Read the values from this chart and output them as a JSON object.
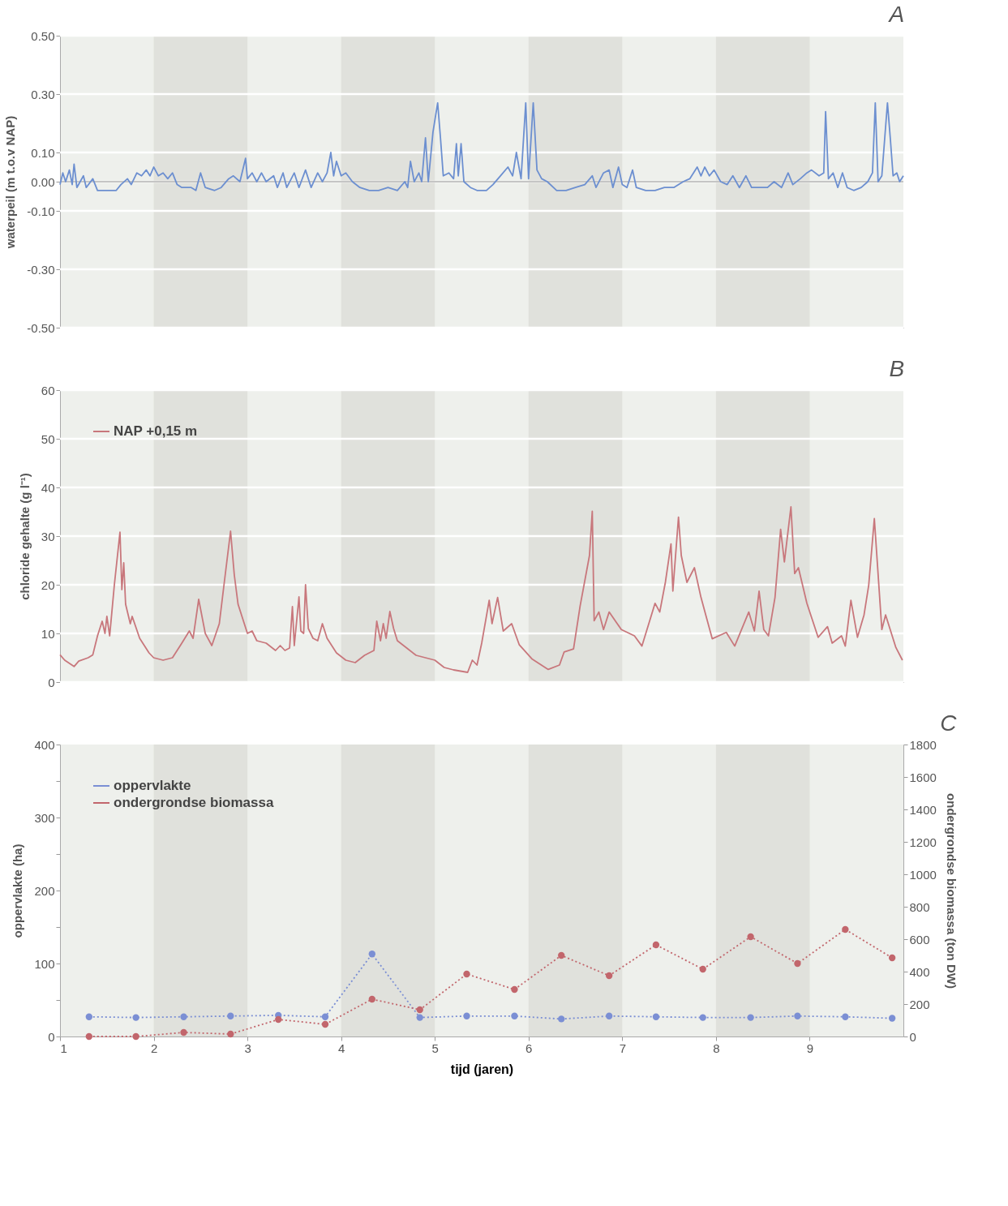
{
  "chart_data": [
    {
      "type": "line",
      "title": "A",
      "ylabel": "waterpeil (m t.o.v NAP)",
      "xlim": [
        1,
        10
      ],
      "ylim": [
        -0.5,
        0.5
      ],
      "yticks": [
        {
          "value": -0.5,
          "label": "-0.50"
        },
        {
          "value": -0.3,
          "label": "-0.30"
        },
        {
          "value": -0.1,
          "label": "-0.10"
        },
        {
          "value": 0,
          "label": "0.00"
        },
        {
          "value": 0.1,
          "label": "0.10"
        },
        {
          "value": 0.3,
          "label": "0.30"
        },
        {
          "value": 0.5,
          "label": "0.50"
        }
      ],
      "grid": "y",
      "tick_labels": "y",
      "legend": false,
      "ref_lines": [
        {
          "axis": "y",
          "value": 0,
          "color": "#8c8c8c",
          "line_style": "solid"
        }
      ],
      "bands": [
        {
          "axis": "x",
          "from": 2,
          "to": 3,
          "color": "#e0e1dc"
        },
        {
          "axis": "x",
          "from": 4,
          "to": 5,
          "color": "#e0e1dc"
        },
        {
          "axis": "x",
          "from": 6,
          "to": 7,
          "color": "#e0e1dc"
        },
        {
          "axis": "x",
          "from": 8,
          "to": 9,
          "color": "#e0e1dc"
        }
      ],
      "series": [
        {
          "color": "#6c8fd0",
          "line_style": "solid",
          "x": [
            1.0,
            1.03,
            1.06,
            1.1,
            1.13,
            1.15,
            1.18,
            1.25,
            1.28,
            1.35,
            1.4,
            1.5,
            1.6,
            1.65,
            1.72,
            1.76,
            1.82,
            1.87,
            1.92,
            1.96,
            2.0,
            2.05,
            2.1,
            2.15,
            2.2,
            2.25,
            2.3,
            2.4,
            2.45,
            2.5,
            2.55,
            2.65,
            2.72,
            2.8,
            2.85,
            2.92,
            2.98,
            3.0,
            3.05,
            3.1,
            3.15,
            3.2,
            3.28,
            3.32,
            3.38,
            3.42,
            3.5,
            3.55,
            3.62,
            3.68,
            3.75,
            3.8,
            3.85,
            3.89,
            3.92,
            3.95,
            4.0,
            4.05,
            4.12,
            4.2,
            4.3,
            4.4,
            4.5,
            4.6,
            4.68,
            4.71,
            4.74,
            4.78,
            4.83,
            4.86,
            4.9,
            4.93,
            4.98,
            5.03,
            5.06,
            5.09,
            5.15,
            5.2,
            5.23,
            5.25,
            5.28,
            5.31,
            5.38,
            5.45,
            5.55,
            5.62,
            5.7,
            5.78,
            5.83,
            5.87,
            5.92,
            5.97,
            6.0,
            6.05,
            6.09,
            6.14,
            6.2,
            6.3,
            6.4,
            6.5,
            6.6,
            6.68,
            6.72,
            6.8,
            6.86,
            6.9,
            6.96,
            7.0,
            7.05,
            7.11,
            7.15,
            7.25,
            7.35,
            7.45,
            7.55,
            7.65,
            7.72,
            7.8,
            7.84,
            7.88,
            7.93,
            7.98,
            8.05,
            8.12,
            8.18,
            8.25,
            8.32,
            8.38,
            8.45,
            8.55,
            8.62,
            8.7,
            8.77,
            8.82,
            8.9,
            8.97,
            9.02,
            9.1,
            9.15,
            9.17,
            9.2,
            9.25,
            9.3,
            9.35,
            9.4,
            9.47,
            9.55,
            9.62,
            9.67,
            9.7,
            9.73,
            9.77,
            9.83,
            9.86,
            9.89,
            9.93,
            9.96,
            10.0
          ],
          "values": [
            -0.01,
            0.03,
            0.0,
            0.04,
            -0.01,
            0.06,
            -0.02,
            0.02,
            -0.02,
            0.01,
            -0.03,
            -0.03,
            -0.03,
            -0.01,
            0.01,
            -0.01,
            0.03,
            0.02,
            0.04,
            0.02,
            0.05,
            0.02,
            0.03,
            0.01,
            0.03,
            -0.01,
            -0.02,
            -0.02,
            -0.03,
            0.03,
            -0.02,
            -0.03,
            -0.02,
            0.01,
            0.02,
            0.0,
            0.08,
            0.01,
            0.03,
            0.0,
            0.03,
            0.0,
            0.02,
            -0.02,
            0.03,
            -0.02,
            0.03,
            -0.02,
            0.04,
            -0.02,
            0.03,
            0.0,
            0.03,
            0.1,
            0.02,
            0.07,
            0.02,
            0.03,
            0.0,
            -0.02,
            -0.03,
            -0.03,
            -0.02,
            -0.03,
            0.0,
            -0.02,
            0.07,
            0.0,
            0.03,
            0.0,
            0.15,
            0.0,
            0.17,
            0.27,
            0.15,
            0.02,
            0.03,
            0.01,
            0.13,
            0.02,
            0.13,
            0.0,
            -0.02,
            -0.03,
            -0.03,
            -0.01,
            0.02,
            0.05,
            0.02,
            0.1,
            0.01,
            0.27,
            0.01,
            0.27,
            0.04,
            0.01,
            0.0,
            -0.03,
            -0.03,
            -0.02,
            -0.01,
            0.02,
            -0.02,
            0.03,
            0.04,
            -0.02,
            0.05,
            -0.01,
            -0.02,
            0.04,
            -0.02,
            -0.03,
            -0.03,
            -0.02,
            -0.02,
            0.0,
            0.01,
            0.05,
            0.02,
            0.05,
            0.02,
            0.04,
            0.0,
            -0.01,
            0.02,
            -0.02,
            0.02,
            -0.02,
            -0.02,
            -0.02,
            0.0,
            -0.02,
            0.03,
            -0.01,
            0.01,
            0.03,
            0.04,
            0.02,
            0.03,
            0.24,
            0.01,
            0.03,
            -0.02,
            0.03,
            -0.02,
            -0.03,
            -0.02,
            0.0,
            0.03,
            0.27,
            0.0,
            0.02,
            0.27,
            0.15,
            0.02,
            0.03,
            0.0,
            0.02
          ]
        }
      ]
    },
    {
      "type": "line",
      "title": "B",
      "ylabel": "chloride gehalte (g l⁻¹)",
      "xlim": [
        1,
        10
      ],
      "ylim": [
        0,
        60
      ],
      "yticks": [
        0,
        10,
        20,
        30,
        40,
        50,
        60
      ],
      "grid": "y",
      "tick_labels": "y",
      "legend": "top left",
      "bands": [
        {
          "axis": "x",
          "from": 2,
          "to": 3,
          "color": "#e0e1dc"
        },
        {
          "axis": "x",
          "from": 4,
          "to": 5,
          "color": "#e0e1dc"
        },
        {
          "axis": "x",
          "from": 6,
          "to": 7,
          "color": "#e0e1dc"
        },
        {
          "axis": "x",
          "from": 8,
          "to": 9,
          "color": "#e0e1dc"
        }
      ],
      "series": [
        {
          "name": "NAP +0,15 m",
          "color": "#c8777c",
          "line_style": "solid",
          "x": [
            1.0,
            1.05,
            1.15,
            1.2,
            1.3,
            1.35,
            1.4,
            1.45,
            1.48,
            1.5,
            1.53,
            1.58,
            1.64,
            1.66,
            1.68,
            1.7,
            1.75,
            1.77,
            1.85,
            1.95,
            2.0,
            2.1,
            2.2,
            2.3,
            2.38,
            2.42,
            2.48,
            2.55,
            2.62,
            2.7,
            2.75,
            2.82,
            2.86,
            2.9,
            2.95,
            3.0,
            3.05,
            3.1,
            3.2,
            3.3,
            3.35,
            3.4,
            3.45,
            3.48,
            3.5,
            3.55,
            3.57,
            3.6,
            3.62,
            3.65,
            3.7,
            3.75,
            3.8,
            3.85,
            3.95,
            4.05,
            4.15,
            4.25,
            4.35,
            4.38,
            4.42,
            4.45,
            4.48,
            4.52,
            4.56,
            4.6,
            4.7,
            4.8,
            4.9,
            5.0,
            5.1,
            5.2,
            5.35,
            5.4,
            5.45,
            5.5,
            5.58,
            5.61,
            5.67,
            5.73,
            5.82,
            5.9,
            6.04,
            6.21,
            6.33,
            6.38,
            6.48,
            6.55,
            6.65,
            6.68,
            6.7,
            6.75,
            6.8,
            6.86,
            6.99,
            7.13,
            7.21,
            7.35,
            7.4,
            7.46,
            7.52,
            7.54,
            7.6,
            7.63,
            7.69,
            7.77,
            7.84,
            7.96,
            8.11,
            8.2,
            8.35,
            8.41,
            8.46,
            8.51,
            8.56,
            8.63,
            8.69,
            8.73,
            8.8,
            8.84,
            8.88,
            8.97,
            9.09,
            9.19,
            9.24,
            9.34,
            9.38,
            9.44,
            9.51,
            9.58,
            9.63,
            9.69,
            9.77,
            9.81,
            9.92,
            9.99
          ],
          "values": [
            5.6,
            4.5,
            3.2,
            4.3,
            5.0,
            5.6,
            9.5,
            12.5,
            10,
            13.5,
            9.5,
            20,
            30.8,
            19,
            24.5,
            16,
            12,
            13.5,
            9,
            6,
            5,
            4.5,
            5,
            8,
            10.5,
            9,
            17,
            10,
            7.5,
            12,
            20,
            31,
            22,
            16,
            13,
            10,
            10.5,
            8.5,
            8,
            6.5,
            7.5,
            6.5,
            7,
            15.5,
            7.5,
            17.5,
            10.5,
            10,
            20,
            11,
            9,
            8.5,
            12,
            9,
            6,
            4.5,
            4,
            5.5,
            6.5,
            12.5,
            8.5,
            12,
            9,
            14.5,
            11,
            8.5,
            7,
            5.5,
            5,
            4.5,
            3,
            2.5,
            2,
            4.5,
            3.5,
            8,
            16.8,
            12,
            17.4,
            10.5,
            12,
            7.7,
            4.7,
            2.6,
            3.5,
            6.2,
            6.8,
            15.6,
            26,
            35.1,
            12.6,
            14.4,
            10.8,
            14.4,
            10.8,
            9.5,
            7.4,
            16.2,
            14.4,
            20.5,
            28.4,
            18.7,
            33.9,
            26,
            20.5,
            23.5,
            17.4,
            8.9,
            10.2,
            7.4,
            14.4,
            10.5,
            18.7,
            10.8,
            9.5,
            17.4,
            31.4,
            24.7,
            36,
            22.3,
            23.5,
            16.2,
            9.2,
            11.4,
            8,
            9.5,
            7.4,
            16.8,
            9.2,
            13.8,
            19.9,
            33.6,
            10.8,
            13.8,
            7.1,
            4.5
          ]
        }
      ]
    },
    {
      "type": "line",
      "title": "C",
      "xlabel": "tijd (jaren)",
      "ylabel": "oppervlakte (ha)",
      "y2label": "ondergrondse biomassa (ton DW)",
      "xlim": [
        1,
        10
      ],
      "xticks": [
        1,
        2,
        3,
        4,
        5,
        6,
        7,
        8,
        9
      ],
      "ylim": [
        0,
        400
      ],
      "yticks": [
        0,
        {
          "value": 50,
          "label": null
        },
        100,
        {
          "value": 150,
          "label": null
        },
        200,
        {
          "value": 250,
          "label": null
        },
        300,
        {
          "value": 350,
          "label": null
        },
        400
      ],
      "y2lim": [
        0,
        1800
      ],
      "y2ticks": [
        0,
        200,
        400,
        600,
        800,
        1000,
        1200,
        1400,
        1600,
        1800
      ],
      "grid": false,
      "legend": "top left",
      "bands": [
        {
          "axis": "x",
          "from": 2,
          "to": 3,
          "color": "#e0e1dc"
        },
        {
          "axis": "x",
          "from": 4,
          "to": 5,
          "color": "#e0e1dc"
        },
        {
          "axis": "x",
          "from": 6,
          "to": 7,
          "color": "#e0e1dc"
        },
        {
          "axis": "x",
          "from": 8,
          "to": 9,
          "color": "#e0e1dc"
        }
      ],
      "series": [
        {
          "name": "oppervlakte",
          "color": "#7b8fd4",
          "marker": "circle",
          "line_style": "dotted",
          "x": [
            1.31,
            1.81,
            2.32,
            2.82,
            3.33,
            3.83,
            4.33,
            4.84,
            5.34,
            5.85,
            6.35,
            6.86,
            7.36,
            7.86,
            8.37,
            8.87,
            9.38,
            9.88
          ],
          "values": [
            27,
            26,
            27,
            28,
            29,
            27,
            113,
            26,
            28,
            28,
            24,
            28,
            27,
            26,
            26,
            28,
            27,
            25
          ]
        },
        {
          "name": "ondergrondse biomassa",
          "color": "#c2666c",
          "marker": "circle",
          "line_style": "dotted",
          "axis": "y2",
          "x": [
            1.31,
            1.81,
            2.32,
            2.82,
            3.33,
            3.83,
            4.33,
            4.84,
            5.34,
            5.85,
            6.35,
            6.86,
            7.36,
            7.86,
            8.37,
            8.87,
            9.38,
            9.88
          ],
          "values": [
            0,
            0,
            25,
            15,
            105,
            75,
            230,
            165,
            385,
            290,
            500,
            375,
            565,
            415,
            615,
            450,
            660,
            485
          ]
        }
      ]
    }
  ]
}
